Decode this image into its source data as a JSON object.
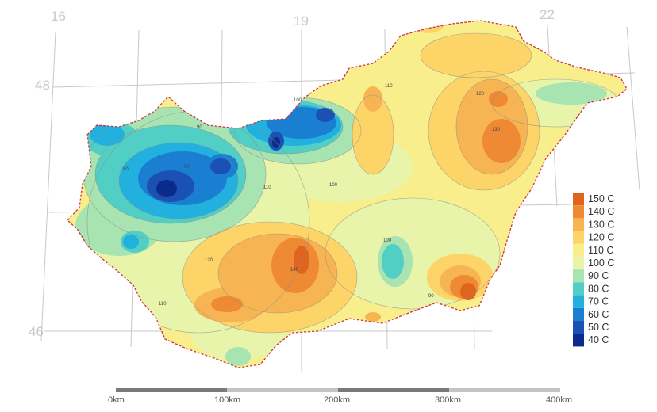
{
  "grid_labels": {
    "lon_16": "16",
    "lon_19": "19",
    "lon_22": "22",
    "lat_48": "48",
    "lat_46": "46"
  },
  "legend": {
    "items": [
      {
        "label": "150 C",
        "color": "#e0631e"
      },
      {
        "label": "140 C",
        "color": "#ee8a34"
      },
      {
        "label": "130 C",
        "color": "#f7b453"
      },
      {
        "label": "120 C",
        "color": "#fcd467"
      },
      {
        "label": "110 C",
        "color": "#f8ef8c"
      },
      {
        "label": "100 C",
        "color": "#e8f4aa"
      },
      {
        "label": "90 C",
        "color": "#a8e3b2"
      },
      {
        "label": "80 C",
        "color": "#52cfc4"
      },
      {
        "label": "70 C",
        "color": "#22b0df"
      },
      {
        "label": "60 C",
        "color": "#1a7fd0"
      },
      {
        "label": "50 C",
        "color": "#1a51b3"
      },
      {
        "label": "40 C",
        "color": "#0a2a8e"
      }
    ]
  },
  "scale_bar": {
    "labels": [
      "0km",
      "100km",
      "200km",
      "300km",
      "400km"
    ]
  },
  "colors": {
    "border": "#cc3344",
    "grid": "#c8c8c8",
    "base_fill": "#f8ef8c"
  },
  "contour_labels": [
    "100",
    "110",
    "120",
    "130",
    "140",
    "90",
    "80",
    "70",
    "60",
    "100",
    "110",
    "120",
    "110",
    "100",
    "90"
  ]
}
